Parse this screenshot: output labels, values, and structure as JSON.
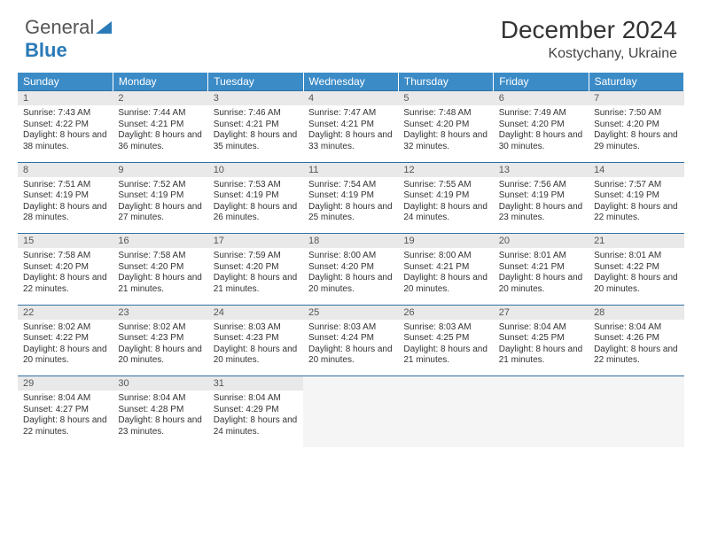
{
  "brand": {
    "text_a": "General",
    "text_b": "Blue"
  },
  "header": {
    "month_title": "December 2024",
    "location": "Kostychany, Ukraine"
  },
  "colors": {
    "header_bg": "#3b8bc7",
    "week_border": "#2e6fa5",
    "daynum_bg": "#e9e9e9",
    "empty_bg": "#f5f5f5",
    "logo_blue": "#2a7ab8"
  },
  "weekdays": [
    "Sunday",
    "Monday",
    "Tuesday",
    "Wednesday",
    "Thursday",
    "Friday",
    "Saturday"
  ],
  "weeks": [
    [
      {
        "n": "1",
        "sr": "7:43 AM",
        "ss": "4:22 PM",
        "dl": "8 hours and 38 minutes."
      },
      {
        "n": "2",
        "sr": "7:44 AM",
        "ss": "4:21 PM",
        "dl": "8 hours and 36 minutes."
      },
      {
        "n": "3",
        "sr": "7:46 AM",
        "ss": "4:21 PM",
        "dl": "8 hours and 35 minutes."
      },
      {
        "n": "4",
        "sr": "7:47 AM",
        "ss": "4:21 PM",
        "dl": "8 hours and 33 minutes."
      },
      {
        "n": "5",
        "sr": "7:48 AM",
        "ss": "4:20 PM",
        "dl": "8 hours and 32 minutes."
      },
      {
        "n": "6",
        "sr": "7:49 AM",
        "ss": "4:20 PM",
        "dl": "8 hours and 30 minutes."
      },
      {
        "n": "7",
        "sr": "7:50 AM",
        "ss": "4:20 PM",
        "dl": "8 hours and 29 minutes."
      }
    ],
    [
      {
        "n": "8",
        "sr": "7:51 AM",
        "ss": "4:19 PM",
        "dl": "8 hours and 28 minutes."
      },
      {
        "n": "9",
        "sr": "7:52 AM",
        "ss": "4:19 PM",
        "dl": "8 hours and 27 minutes."
      },
      {
        "n": "10",
        "sr": "7:53 AM",
        "ss": "4:19 PM",
        "dl": "8 hours and 26 minutes."
      },
      {
        "n": "11",
        "sr": "7:54 AM",
        "ss": "4:19 PM",
        "dl": "8 hours and 25 minutes."
      },
      {
        "n": "12",
        "sr": "7:55 AM",
        "ss": "4:19 PM",
        "dl": "8 hours and 24 minutes."
      },
      {
        "n": "13",
        "sr": "7:56 AM",
        "ss": "4:19 PM",
        "dl": "8 hours and 23 minutes."
      },
      {
        "n": "14",
        "sr": "7:57 AM",
        "ss": "4:19 PM",
        "dl": "8 hours and 22 minutes."
      }
    ],
    [
      {
        "n": "15",
        "sr": "7:58 AM",
        "ss": "4:20 PM",
        "dl": "8 hours and 22 minutes."
      },
      {
        "n": "16",
        "sr": "7:58 AM",
        "ss": "4:20 PM",
        "dl": "8 hours and 21 minutes."
      },
      {
        "n": "17",
        "sr": "7:59 AM",
        "ss": "4:20 PM",
        "dl": "8 hours and 21 minutes."
      },
      {
        "n": "18",
        "sr": "8:00 AM",
        "ss": "4:20 PM",
        "dl": "8 hours and 20 minutes."
      },
      {
        "n": "19",
        "sr": "8:00 AM",
        "ss": "4:21 PM",
        "dl": "8 hours and 20 minutes."
      },
      {
        "n": "20",
        "sr": "8:01 AM",
        "ss": "4:21 PM",
        "dl": "8 hours and 20 minutes."
      },
      {
        "n": "21",
        "sr": "8:01 AM",
        "ss": "4:22 PM",
        "dl": "8 hours and 20 minutes."
      }
    ],
    [
      {
        "n": "22",
        "sr": "8:02 AM",
        "ss": "4:22 PM",
        "dl": "8 hours and 20 minutes."
      },
      {
        "n": "23",
        "sr": "8:02 AM",
        "ss": "4:23 PM",
        "dl": "8 hours and 20 minutes."
      },
      {
        "n": "24",
        "sr": "8:03 AM",
        "ss": "4:23 PM",
        "dl": "8 hours and 20 minutes."
      },
      {
        "n": "25",
        "sr": "8:03 AM",
        "ss": "4:24 PM",
        "dl": "8 hours and 20 minutes."
      },
      {
        "n": "26",
        "sr": "8:03 AM",
        "ss": "4:25 PM",
        "dl": "8 hours and 21 minutes."
      },
      {
        "n": "27",
        "sr": "8:04 AM",
        "ss": "4:25 PM",
        "dl": "8 hours and 21 minutes."
      },
      {
        "n": "28",
        "sr": "8:04 AM",
        "ss": "4:26 PM",
        "dl": "8 hours and 22 minutes."
      }
    ],
    [
      {
        "n": "29",
        "sr": "8:04 AM",
        "ss": "4:27 PM",
        "dl": "8 hours and 22 minutes."
      },
      {
        "n": "30",
        "sr": "8:04 AM",
        "ss": "4:28 PM",
        "dl": "8 hours and 23 minutes."
      },
      {
        "n": "31",
        "sr": "8:04 AM",
        "ss": "4:29 PM",
        "dl": "8 hours and 24 minutes."
      },
      null,
      null,
      null,
      null
    ]
  ],
  "labels": {
    "sunrise": "Sunrise: ",
    "sunset": "Sunset: ",
    "daylight": "Daylight: "
  }
}
